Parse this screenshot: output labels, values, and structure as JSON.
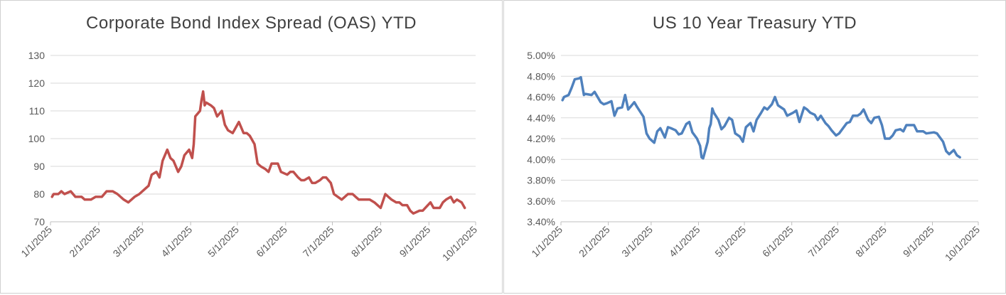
{
  "chart_data": [
    {
      "type": "line",
      "title": "Corporate Bond Index Spread (OAS) YTD",
      "xlabel": "",
      "ylabel": "",
      "ylim": [
        70,
        130
      ],
      "yticks": [
        70,
        80,
        90,
        100,
        110,
        120,
        130
      ],
      "ytick_labels": [
        "70",
        "80",
        "90",
        "100",
        "110",
        "120",
        "130"
      ],
      "xlim": [
        "2025-01-01",
        "2025-10-01"
      ],
      "xticks": [
        "2025-01-01",
        "2025-02-01",
        "2025-03-01",
        "2025-04-01",
        "2025-05-01",
        "2025-06-01",
        "2025-07-01",
        "2025-08-01",
        "2025-09-01",
        "2025-10-01"
      ],
      "xtick_labels": [
        "1/1/2025",
        "2/1/2025",
        "3/1/2025",
        "4/1/2025",
        "5/1/2025",
        "6/1/2025",
        "7/1/2025",
        "8/1/2025",
        "9/1/2025",
        "10/1/2025"
      ],
      "grid": true,
      "color": "#C0504D",
      "series": [
        {
          "x": [
            "2025-01-02",
            "2025-01-03",
            "2025-01-06",
            "2025-01-08",
            "2025-01-10",
            "2025-01-14",
            "2025-01-17",
            "2025-01-21",
            "2025-01-23",
            "2025-01-27",
            "2025-01-30",
            "2025-02-03",
            "2025-02-06",
            "2025-02-10",
            "2025-02-13",
            "2025-02-17",
            "2025-02-20",
            "2025-02-24",
            "2025-02-27",
            "2025-03-03",
            "2025-03-05",
            "2025-03-07",
            "2025-03-10",
            "2025-03-12",
            "2025-03-14",
            "2025-03-17",
            "2025-03-19",
            "2025-03-21",
            "2025-03-24",
            "2025-03-26",
            "2025-03-28",
            "2025-03-31",
            "2025-04-02",
            "2025-04-03",
            "2025-04-04",
            "2025-04-07",
            "2025-04-08",
            "2025-04-09",
            "2025-04-10",
            "2025-04-11",
            "2025-04-14",
            "2025-04-16",
            "2025-04-18",
            "2025-04-21",
            "2025-04-23",
            "2025-04-25",
            "2025-04-28",
            "2025-04-30",
            "2025-05-02",
            "2025-05-05",
            "2025-05-07",
            "2025-05-09",
            "2025-05-12",
            "2025-05-14",
            "2025-05-16",
            "2025-05-19",
            "2025-05-21",
            "2025-05-23",
            "2025-05-27",
            "2025-05-29",
            "2025-06-02",
            "2025-06-04",
            "2025-06-06",
            "2025-06-09",
            "2025-06-11",
            "2025-06-13",
            "2025-06-16",
            "2025-06-18",
            "2025-06-20",
            "2025-06-23",
            "2025-06-25",
            "2025-06-27",
            "2025-06-30",
            "2025-07-02",
            "2025-07-07",
            "2025-07-09",
            "2025-07-11",
            "2025-07-14",
            "2025-07-16",
            "2025-07-18",
            "2025-07-21",
            "2025-07-23",
            "2025-07-25",
            "2025-07-28",
            "2025-07-30",
            "2025-08-01",
            "2025-08-04",
            "2025-08-06",
            "2025-08-08",
            "2025-08-11",
            "2025-08-13",
            "2025-08-15",
            "2025-08-18",
            "2025-08-20",
            "2025-08-22",
            "2025-08-26",
            "2025-08-28",
            "2025-09-02",
            "2025-09-04",
            "2025-09-08",
            "2025-09-10",
            "2025-09-12",
            "2025-09-15",
            "2025-09-17",
            "2025-09-19",
            "2025-09-22",
            "2025-09-24"
          ],
          "y": [
            79,
            80,
            80,
            81,
            80,
            81,
            79,
            79,
            78,
            78,
            79,
            79,
            81,
            81,
            80,
            78,
            77,
            79,
            80,
            82,
            83,
            87,
            88,
            86,
            92,
            96,
            93,
            92,
            88,
            90,
            94,
            96,
            93,
            98,
            108,
            110,
            114,
            117,
            112,
            113,
            112,
            111,
            108,
            110,
            105,
            103,
            102,
            104,
            106,
            102,
            102,
            101,
            98,
            91,
            90,
            89,
            88,
            91,
            91,
            88,
            87,
            88,
            88,
            86,
            85,
            85,
            86,
            84,
            84,
            85,
            86,
            86,
            84,
            80,
            78,
            79,
            80,
            80,
            79,
            78,
            78,
            78,
            78,
            77,
            76,
            75,
            80,
            79,
            78,
            77,
            77,
            76,
            76,
            74,
            73,
            74,
            74,
            77,
            75,
            75,
            77,
            78,
            79,
            77,
            78,
            77,
            75
          ]
        }
      ]
    },
    {
      "type": "line",
      "title": "US 10 Year Treasury YTD",
      "xlabel": "",
      "ylabel": "",
      "ylim": [
        3.4,
        5.0
      ],
      "yticks": [
        3.4,
        3.6,
        3.8,
        4.0,
        4.2,
        4.4,
        4.6,
        4.8,
        5.0
      ],
      "ytick_labels": [
        "3.40%",
        "3.60%",
        "3.80%",
        "4.00%",
        "4.20%",
        "4.40%",
        "4.60%",
        "4.80%",
        "5.00%"
      ],
      "xlim": [
        "2025-01-01",
        "2025-10-01"
      ],
      "xticks": [
        "2025-01-01",
        "2025-02-01",
        "2025-03-01",
        "2025-04-01",
        "2025-05-01",
        "2025-06-01",
        "2025-07-01",
        "2025-08-01",
        "2025-09-01",
        "2025-10-01"
      ],
      "xtick_labels": [
        "1/1/2025",
        "2/1/2025",
        "3/1/2025",
        "4/1/2025",
        "5/1/2025",
        "6/1/2025",
        "7/1/2025",
        "8/1/2025",
        "9/1/2025",
        "10/1/2025"
      ],
      "grid": true,
      "color": "#4F81BD",
      "series": [
        {
          "x": [
            "2025-01-02",
            "2025-01-03",
            "2025-01-06",
            "2025-01-08",
            "2025-01-10",
            "2025-01-13",
            "2025-01-14",
            "2025-01-16",
            "2025-01-17",
            "2025-01-21",
            "2025-01-23",
            "2025-01-27",
            "2025-01-29",
            "2025-01-31",
            "2025-02-03",
            "2025-02-05",
            "2025-02-07",
            "2025-02-10",
            "2025-02-12",
            "2025-02-14",
            "2025-02-18",
            "2025-02-20",
            "2025-02-24",
            "2025-02-26",
            "2025-02-28",
            "2025-03-03",
            "2025-03-05",
            "2025-03-07",
            "2025-03-10",
            "2025-03-12",
            "2025-03-14",
            "2025-03-17",
            "2025-03-19",
            "2025-03-21",
            "2025-03-24",
            "2025-03-26",
            "2025-03-28",
            "2025-03-31",
            "2025-04-02",
            "2025-04-03",
            "2025-04-04",
            "2025-04-07",
            "2025-04-08",
            "2025-04-09",
            "2025-04-10",
            "2025-04-11",
            "2025-04-14",
            "2025-04-16",
            "2025-04-18",
            "2025-04-21",
            "2025-04-23",
            "2025-04-25",
            "2025-04-28",
            "2025-04-30",
            "2025-05-02",
            "2025-05-05",
            "2025-05-07",
            "2025-05-09",
            "2025-05-12",
            "2025-05-14",
            "2025-05-16",
            "2025-05-19",
            "2025-05-21",
            "2025-05-23",
            "2025-05-27",
            "2025-05-29",
            "2025-06-02",
            "2025-06-04",
            "2025-06-06",
            "2025-06-09",
            "2025-06-11",
            "2025-06-13",
            "2025-06-16",
            "2025-06-18",
            "2025-06-20",
            "2025-06-23",
            "2025-06-25",
            "2025-06-27",
            "2025-06-30",
            "2025-07-02",
            "2025-07-07",
            "2025-07-09",
            "2025-07-11",
            "2025-07-14",
            "2025-07-16",
            "2025-07-18",
            "2025-07-21",
            "2025-07-23",
            "2025-07-25",
            "2025-07-28",
            "2025-07-30",
            "2025-08-01",
            "2025-08-04",
            "2025-08-06",
            "2025-08-08",
            "2025-08-11",
            "2025-08-13",
            "2025-08-15",
            "2025-08-18",
            "2025-08-20",
            "2025-08-22",
            "2025-08-26",
            "2025-08-28",
            "2025-09-02",
            "2025-09-04",
            "2025-09-08",
            "2025-09-10",
            "2025-09-12",
            "2025-09-15",
            "2025-09-17",
            "2025-09-19"
          ],
          "y": [
            4.57,
            4.6,
            4.62,
            4.69,
            4.77,
            4.78,
            4.79,
            4.62,
            4.63,
            4.62,
            4.65,
            4.55,
            4.53,
            4.54,
            4.56,
            4.42,
            4.49,
            4.5,
            4.62,
            4.48,
            4.55,
            4.5,
            4.41,
            4.25,
            4.2,
            4.16,
            4.27,
            4.3,
            4.21,
            4.31,
            4.3,
            4.28,
            4.24,
            4.25,
            4.34,
            4.36,
            4.26,
            4.2,
            4.13,
            4.02,
            4.01,
            4.17,
            4.3,
            4.34,
            4.49,
            4.45,
            4.38,
            4.29,
            4.32,
            4.4,
            4.38,
            4.25,
            4.22,
            4.17,
            4.31,
            4.35,
            4.27,
            4.38,
            4.45,
            4.5,
            4.48,
            4.53,
            4.6,
            4.52,
            4.48,
            4.42,
            4.45,
            4.47,
            4.36,
            4.5,
            4.48,
            4.45,
            4.43,
            4.38,
            4.42,
            4.35,
            4.32,
            4.28,
            4.23,
            4.25,
            4.35,
            4.36,
            4.42,
            4.42,
            4.44,
            4.48,
            4.38,
            4.35,
            4.4,
            4.41,
            4.33,
            4.2,
            4.2,
            4.23,
            4.28,
            4.29,
            4.27,
            4.33,
            4.33,
            4.33,
            4.27,
            4.27,
            4.25,
            4.26,
            4.25,
            4.17,
            4.08,
            4.05,
            4.09,
            4.04,
            4.02
          ]
        }
      ]
    }
  ]
}
